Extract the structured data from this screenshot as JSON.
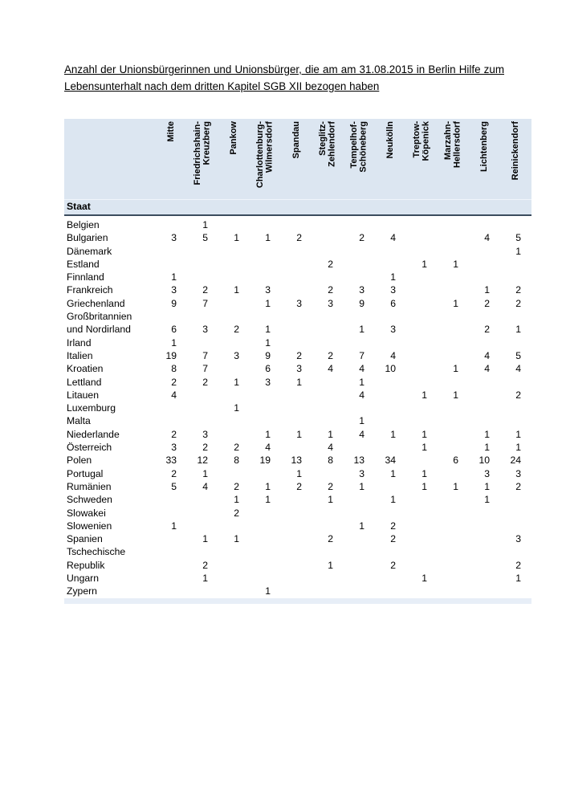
{
  "title": "Anzahl der Unionsbürgerinnen und Unionsbürger, die am am 31.08.2015 in Berlin Hilfe zum Lebensunterhalt nach dem dritten Kapitel SGB XII bezogen haben",
  "colors": {
    "header_bg": "#dce6f1",
    "header_border": "#3b4c5e",
    "footer_strip_bg": "#e7eef7",
    "text": "#000000"
  },
  "table": {
    "row_header": "Staat",
    "columns": [
      "Mitte",
      "Friedrichshain-\nKreuzberg",
      "Pankow",
      "Charlottenburg-\nWilmersdorf",
      "Spandau",
      "Steglitz-\nZehlendorf",
      "Tempelhof-\nSchöneberg",
      "Neukölln",
      "Treptow-\nKöpenick",
      "Marzahn-\nHellersdorf",
      "Lichtenberg",
      "Reinickendorf"
    ],
    "rows": [
      {
        "staat": "Belgien",
        "values": [
          "",
          "1",
          "",
          "",
          "",
          "",
          "",
          "",
          "",
          "",
          "",
          ""
        ]
      },
      {
        "staat": "Bulgarien",
        "values": [
          "3",
          "5",
          "1",
          "1",
          "2",
          "",
          "2",
          "4",
          "",
          "",
          "4",
          "5"
        ]
      },
      {
        "staat": "Dänemark",
        "values": [
          "",
          "",
          "",
          "",
          "",
          "",
          "",
          "",
          "",
          "",
          "",
          "1"
        ]
      },
      {
        "staat": "Estland",
        "values": [
          "",
          "",
          "",
          "",
          "",
          "2",
          "",
          "",
          "1",
          "1",
          "",
          ""
        ]
      },
      {
        "staat": "Finnland",
        "values": [
          "1",
          "",
          "",
          "",
          "",
          "",
          "",
          "1",
          "",
          "",
          "",
          ""
        ]
      },
      {
        "staat": "Frankreich",
        "values": [
          "3",
          "2",
          "1",
          "3",
          "",
          "2",
          "3",
          "3",
          "",
          "",
          "1",
          "2"
        ]
      },
      {
        "staat": "Griechenland",
        "values": [
          "9",
          "7",
          "",
          "1",
          "3",
          "3",
          "9",
          "6",
          "",
          "1",
          "2",
          "2"
        ]
      },
      {
        "staat": "Großbritannien\nund Nordirland",
        "values": [
          "6",
          "3",
          "2",
          "1",
          "",
          "",
          "1",
          "3",
          "",
          "",
          "2",
          "1"
        ]
      },
      {
        "staat": "Irland",
        "values": [
          "1",
          "",
          "",
          "1",
          "",
          "",
          "",
          "",
          "",
          "",
          "",
          ""
        ]
      },
      {
        "staat": "Italien",
        "values": [
          "19",
          "7",
          "3",
          "9",
          "2",
          "2",
          "7",
          "4",
          "",
          "",
          "4",
          "5"
        ]
      },
      {
        "staat": "Kroatien",
        "values": [
          "8",
          "7",
          "",
          "6",
          "3",
          "4",
          "4",
          "10",
          "",
          "1",
          "4",
          "4"
        ]
      },
      {
        "staat": "Lettland",
        "values": [
          "2",
          "2",
          "1",
          "3",
          "1",
          "",
          "1",
          "",
          "",
          "",
          "",
          ""
        ]
      },
      {
        "staat": "Litauen",
        "values": [
          "4",
          "",
          "",
          "",
          "",
          "",
          "4",
          "",
          "1",
          "1",
          "",
          "2"
        ]
      },
      {
        "staat": "Luxemburg",
        "values": [
          "",
          "",
          "1",
          "",
          "",
          "",
          "",
          "",
          "",
          "",
          "",
          ""
        ]
      },
      {
        "staat": "Malta",
        "values": [
          "",
          "",
          "",
          "",
          "",
          "",
          "1",
          "",
          "",
          "",
          "",
          ""
        ]
      },
      {
        "staat": "Niederlande",
        "values": [
          "2",
          "3",
          "",
          "1",
          "1",
          "1",
          "4",
          "1",
          "1",
          "",
          "1",
          "1"
        ]
      },
      {
        "staat": "Österreich",
        "values": [
          "3",
          "2",
          "2",
          "4",
          "",
          "4",
          "",
          "",
          "1",
          "",
          "1",
          "1"
        ]
      },
      {
        "staat": "Polen",
        "values": [
          "33",
          "12",
          "8",
          "19",
          "13",
          "8",
          "13",
          "34",
          "",
          "6",
          "10",
          "24"
        ]
      },
      {
        "staat": "Portugal",
        "values": [
          "2",
          "1",
          "",
          "",
          "1",
          "",
          "3",
          "1",
          "1",
          "",
          "3",
          "3"
        ]
      },
      {
        "staat": "Rumänien",
        "values": [
          "5",
          "4",
          "2",
          "1",
          "2",
          "2",
          "1",
          "",
          "1",
          "1",
          "1",
          "2"
        ]
      },
      {
        "staat": "Schweden",
        "values": [
          "",
          "",
          "1",
          "1",
          "",
          "1",
          "",
          "1",
          "",
          "",
          "1",
          ""
        ]
      },
      {
        "staat": "Slowakei",
        "values": [
          "",
          "",
          "2",
          "",
          "",
          "",
          "",
          "",
          "",
          "",
          "",
          ""
        ]
      },
      {
        "staat": "Slowenien",
        "values": [
          "1",
          "",
          "",
          "",
          "",
          "",
          "1",
          "2",
          "",
          "",
          "",
          ""
        ]
      },
      {
        "staat": "Spanien",
        "values": [
          "",
          "1",
          "1",
          "",
          "",
          "2",
          "",
          "2",
          "",
          "",
          "",
          "3"
        ]
      },
      {
        "staat": "Tschechische\nRepublik",
        "values": [
          "",
          "2",
          "",
          "",
          "",
          "1",
          "",
          "2",
          "",
          "",
          "",
          "2"
        ]
      },
      {
        "staat": "Ungarn",
        "values": [
          "",
          "1",
          "",
          "",
          "",
          "",
          "",
          "",
          "1",
          "",
          "",
          "1"
        ]
      },
      {
        "staat": "Zypern",
        "values": [
          "",
          "",
          "",
          "1",
          "",
          "",
          "",
          "",
          "",
          "",
          "",
          ""
        ]
      }
    ]
  }
}
